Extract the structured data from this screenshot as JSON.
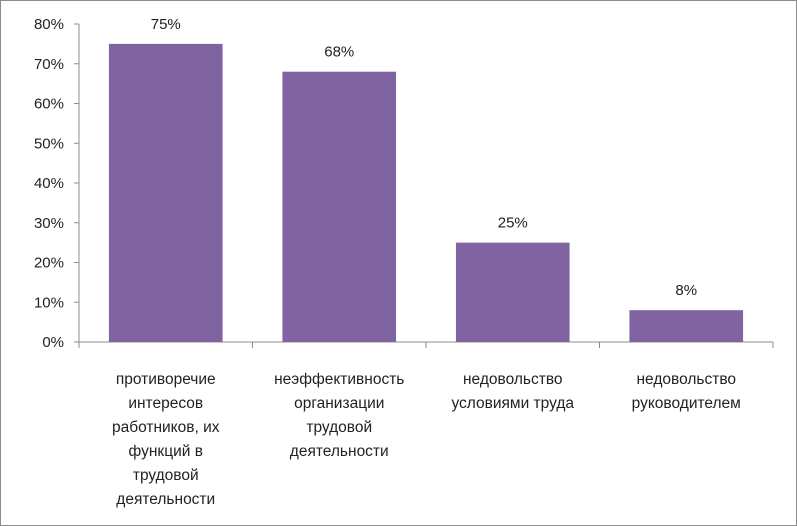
{
  "chart_data": {
    "type": "bar",
    "categories": [
      "противоречие интересов работников, их функций в трудовой деятельности",
      "неэффективность организации трудовой деятельности",
      "недовольство условиями труда",
      "недовольство руководителем"
    ],
    "category_lines": [
      [
        "противоречие",
        "интересов",
        "работников, их",
        "функций в",
        "трудовой",
        "деятельности"
      ],
      [
        "неэффективность",
        "организации",
        "трудовой",
        "деятельности"
      ],
      [
        "недовольство",
        "условиями труда"
      ],
      [
        "недовольство",
        "руководителем"
      ]
    ],
    "values": [
      75,
      68,
      25,
      8
    ],
    "data_labels": [
      "75%",
      "68%",
      "25%",
      "8%"
    ],
    "y_ticks": [
      "0%",
      "10%",
      "20%",
      "30%",
      "40%",
      "50%",
      "60%",
      "70%",
      "80%"
    ],
    "ylim": [
      0,
      80
    ],
    "grid": false,
    "legend": "none",
    "bar_color": "#8064a2",
    "axis_color": "#8c8c8c"
  }
}
